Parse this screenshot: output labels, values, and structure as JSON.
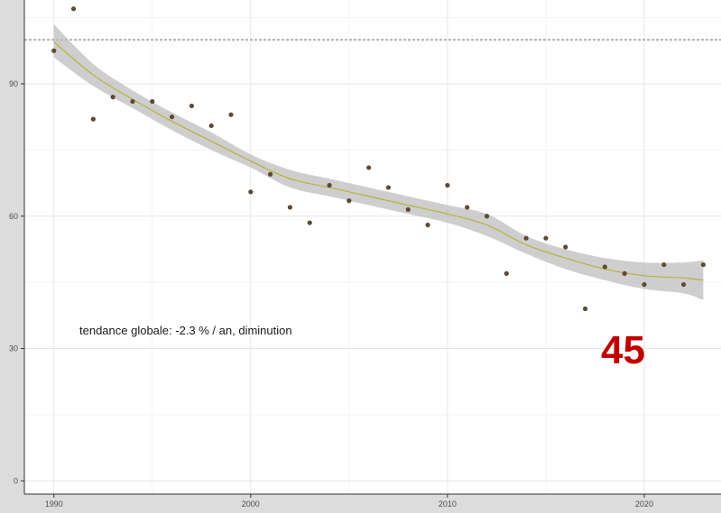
{
  "chart_data": {
    "type": "scatter",
    "title": "",
    "xlabel": "",
    "ylabel": "",
    "xlim": [
      1988.5,
      2023.9
    ],
    "ylim": [
      -3,
      109
    ],
    "x_ticks": [
      1990,
      2000,
      2010,
      2020
    ],
    "y_ticks": [
      0,
      30,
      60,
      90
    ],
    "x_tick_labels": [
      "1990",
      "2000",
      "2010",
      "2020"
    ],
    "y_tick_labels": [
      "0",
      "30",
      "60",
      "90"
    ],
    "grid": true,
    "reference_line": {
      "y": 100,
      "style": "dashed"
    },
    "points": {
      "x": [
        1990,
        1991,
        1992,
        1993,
        1994,
        1995,
        1996,
        1997,
        1998,
        1999,
        2000,
        2001,
        2002,
        2003,
        2004,
        2005,
        2006,
        2007,
        2008,
        2009,
        2010,
        2011,
        2012,
        2013,
        2014,
        2015,
        2016,
        2017,
        2018,
        2019,
        2020,
        2021,
        2022,
        2023
      ],
      "y": [
        97.5,
        107,
        82,
        87,
        86,
        86,
        82.5,
        85,
        80.5,
        83,
        65.5,
        69.5,
        62,
        58.5,
        67,
        63.5,
        71,
        66.5,
        61.5,
        58,
        67,
        62,
        60,
        47,
        55,
        55,
        53,
        39,
        48.5,
        47,
        44.5,
        49,
        44.5,
        49
      ]
    },
    "trend": {
      "x": [
        1990,
        1992,
        1994,
        1996,
        1998,
        2000,
        2002,
        2004,
        2006,
        2008,
        2010,
        2012,
        2014,
        2016,
        2018,
        2020,
        2022,
        2023
      ],
      "y": [
        99.5,
        92,
        86.5,
        81.5,
        77,
        72.5,
        68.5,
        66.5,
        64.5,
        62.5,
        60.5,
        58,
        53.5,
        50.5,
        48,
        46.5,
        46,
        45.5
      ],
      "lower": [
        96,
        89.5,
        84.5,
        79.5,
        75,
        71,
        66.5,
        64.5,
        62.5,
        60.5,
        58.5,
        55.5,
        51.5,
        48,
        45.5,
        43.5,
        42.5,
        41
      ],
      "upper": [
        103.5,
        94.5,
        88.5,
        83.5,
        79,
        74,
        70.5,
        68.5,
        66.5,
        64.5,
        62.5,
        60.5,
        55.5,
        52.5,
        50.5,
        49.5,
        49.5,
        50
      ]
    },
    "annotations": {
      "trend_text": "tendance globale: -2.3 % / an, diminution",
      "big_number": "45"
    },
    "colors": {
      "points": "#5c4a32",
      "trend_line": "#b5b33c",
      "ribbon": "#bdbdbd",
      "big_number": "#c00000"
    }
  }
}
